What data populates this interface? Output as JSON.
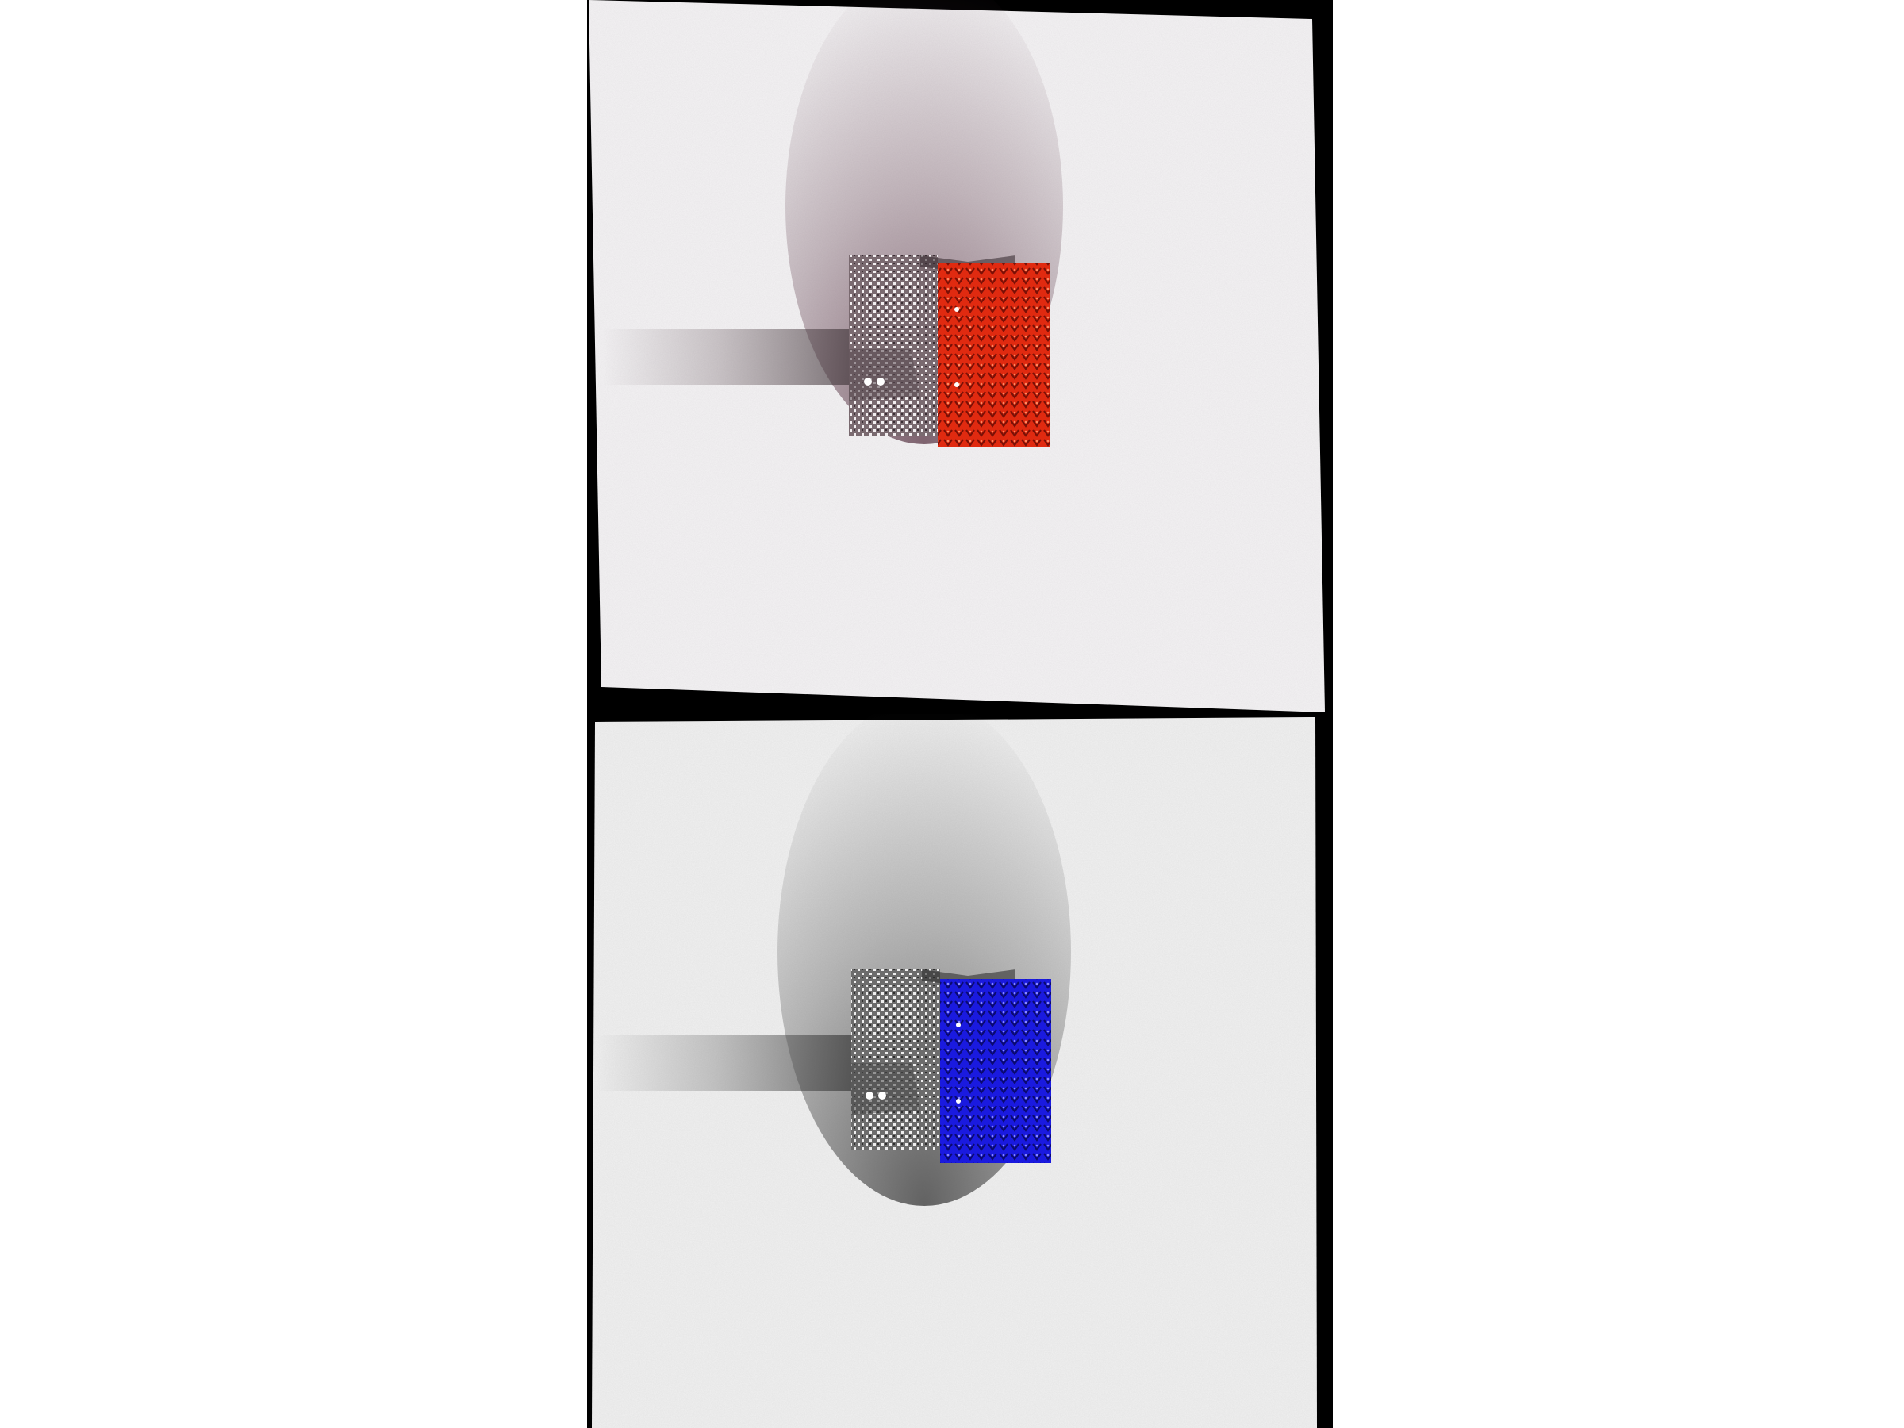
{
  "images": [
    {
      "id": "render-top",
      "variant": "red",
      "accent_color": "#e02a10",
      "accent_dark": "#7a1006",
      "shirt_left_color": "#7a6a70",
      "shadow_tint": "#6a4a58",
      "background": "#f4f3f4"
    },
    {
      "id": "render-bottom",
      "variant": "blue",
      "accent_color": "#1a1adf",
      "accent_dark": "#0a0a70",
      "shirt_left_color": "#6c6c6c",
      "shadow_tint": "#4a4a4a",
      "background": "#f1f1f1"
    }
  ],
  "colors": {
    "frame": "#000000",
    "page": "#ffffff"
  }
}
